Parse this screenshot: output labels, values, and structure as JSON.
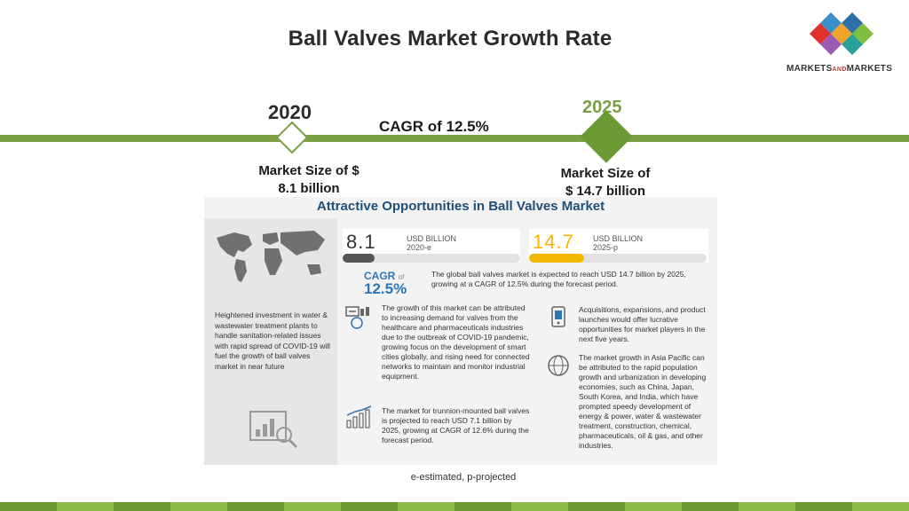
{
  "header": {
    "title": "Ball Valves Market Growth Rate",
    "logo_text_left": "MARKETS",
    "logo_text_and": "AND",
    "logo_text_right": "MARKETS"
  },
  "timeline": {
    "year_start": "2020",
    "year_end": "2025",
    "cagr": "CAGR of 12.5%",
    "market_start_line1": "Market Size of $",
    "market_start_line2": "8.1 billion",
    "market_end_line1": "Market Size of",
    "market_end_line2": "$ 14.7 billion"
  },
  "infographic": {
    "title": "Attractive Opportunities in Ball Valves Market",
    "stat_left_value": "8.1",
    "stat_left_unit": "USD BILLION",
    "stat_left_year": "2020-e",
    "stat_left_fill": 0.18,
    "stat_right_value": "14.7",
    "stat_right_unit": "USD BILLION",
    "stat_right_year": "2025-p",
    "stat_right_fill": 0.31,
    "cagr_label": "CAGR",
    "cagr_of": "of",
    "cagr_value": "12.5%",
    "cagr_text": "The global ball valves market is expected to reach USD 14.7 billion by 2025, growing at a CAGR of 12.5% during the forecast period.",
    "left_text": "Heightened investment in water & wastewater treatment plants to handle sanitation-related issues with rapid spread of COVID-19 will fuel the growth of ball valves market in near future",
    "growth_text": "The growth of this market can be attributed to increasing demand for valves from the healthcare and pharmaceuticals industries due to the outbreak of COVID-19 pandemic, growing focus on the development of smart cities globally, and rising need for connected networks to maintain and monitor industrial equipment.",
    "trunnion_text": "The market for trunnion-mounted ball valves is projected to reach USD 7.1 billion by 2025, growing at CAGR of 12.6% during the forecast period.",
    "acquisitions_text": "Acquisitions, expansions, and product launches would offer lucrative opportunities for market players in the next five years.",
    "asia_text": "The market growth in Asia Pacific can be attributed to the rapid population growth and urbanization in developing economies, such as China, Japan, South Korea, and India, which have prompted speedy development of energy & power, water & wastewater treatment, construction, chemical, pharmaceuticals, oil & gas, and other industries."
  },
  "footnote": "e-estimated, p-projected",
  "colors": {
    "accent_green": "#7aa043",
    "dark_green": "#6b9a35",
    "title_blue": "#1f4e79",
    "cagr_blue": "#2e75b6",
    "highlight_yellow": "#f2b705"
  },
  "icons": [
    "world-map-icon",
    "analytics-magnifier-icon",
    "medical-chart-icon",
    "bar-growth-icon",
    "mobile-device-icon",
    "globe-icon"
  ]
}
